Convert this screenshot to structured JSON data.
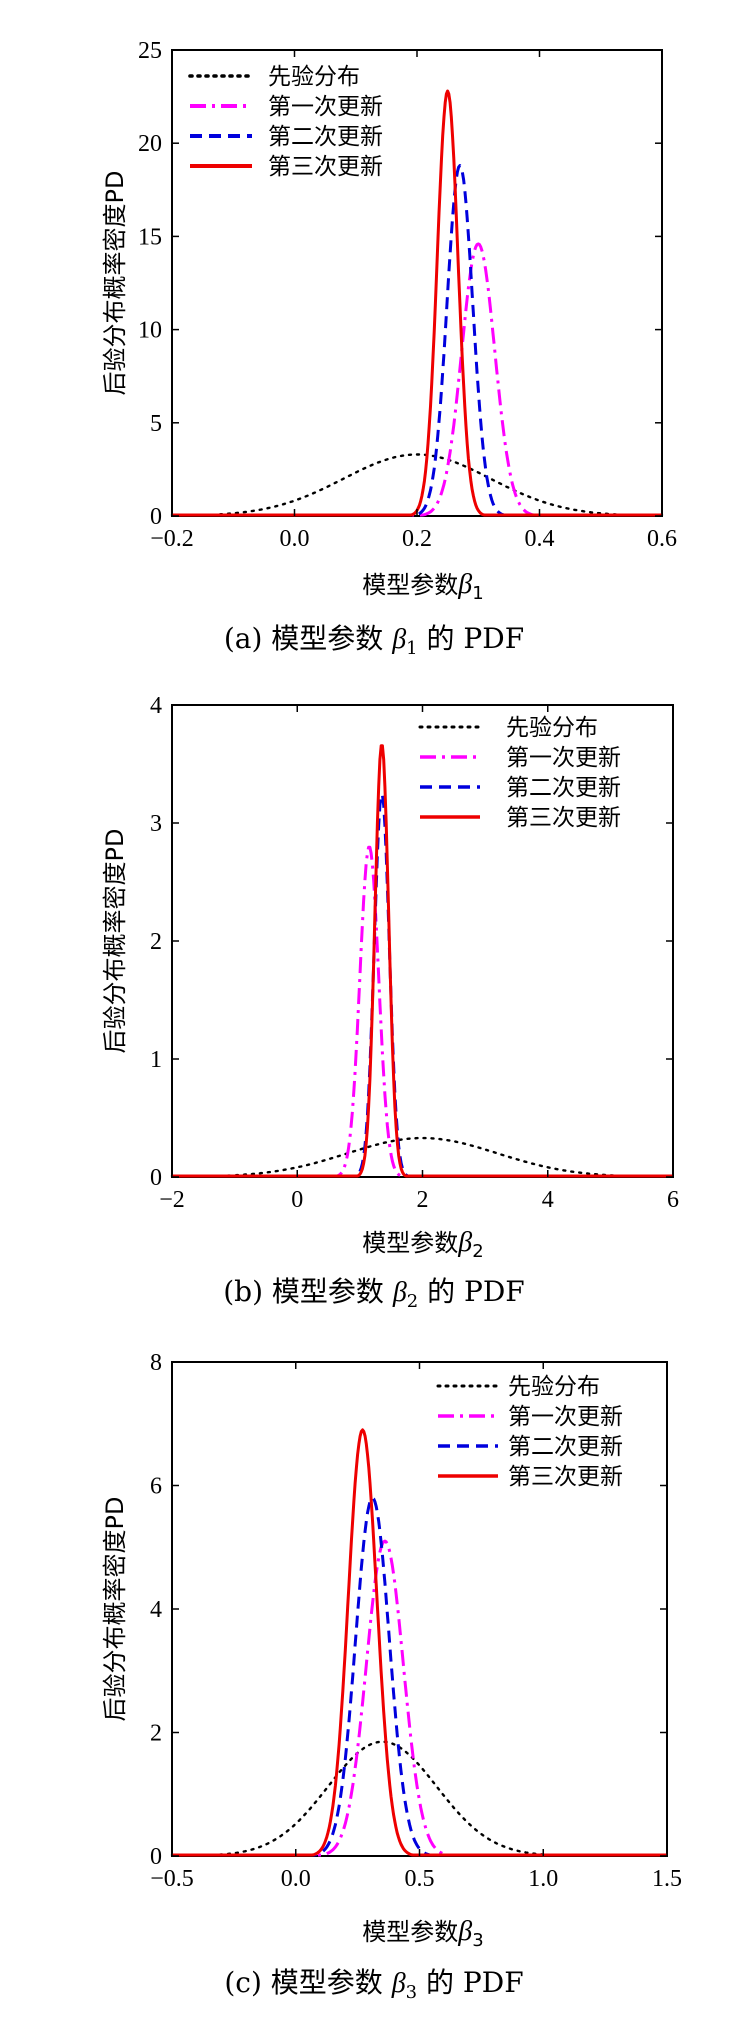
{
  "colors": {
    "prior": "#000000",
    "first": "#ff00ff",
    "second": "#0000dd",
    "third": "#ee0000"
  },
  "legend_labels": [
    "先验分布",
    "第一次更新",
    "第二次更新",
    "第三次更新"
  ],
  "chart_data": [
    {
      "type": "line",
      "panel_caption": "(a)  模型参数 β₁ 的 PDF",
      "xlabel": "模型参数β₁",
      "ylabel": "后验分布概率密度PD",
      "xlim": [
        -0.2,
        0.6
      ],
      "ylim": [
        0,
        25
      ],
      "xticks": [
        "−0.2",
        "0.0",
        "0.2",
        "0.4",
        "0.6"
      ],
      "yticks": [
        "0",
        "5",
        "10",
        "15",
        "20",
        "25"
      ],
      "legend_position": "top-left",
      "series": [
        {
          "name": "先验分布",
          "style": "dotted",
          "mean": 0.2,
          "sd": 0.12,
          "peak": 3.3
        },
        {
          "name": "第一次更新",
          "style": "dashdot",
          "mean": 0.3,
          "sd": 0.027,
          "peak": 14.6
        },
        {
          "name": "第二次更新",
          "style": "dashed",
          "mean": 0.27,
          "sd": 0.021,
          "peak": 18.8
        },
        {
          "name": "第三次更新",
          "style": "solid",
          "mean": 0.25,
          "sd": 0.017,
          "peak": 22.8
        }
      ]
    },
    {
      "type": "line",
      "panel_caption": "(b)  模型参数 β₂ 的 PDF",
      "xlabel": "模型参数β₂",
      "ylabel": "后验分布概率密度PD",
      "xlim": [
        -2,
        6
      ],
      "ylim": [
        0,
        4
      ],
      "xticks": [
        "−2",
        "0",
        "2",
        "4",
        "6"
      ],
      "yticks": [
        "0",
        "1",
        "2",
        "3",
        "4"
      ],
      "legend_position": "top-right",
      "series": [
        {
          "name": "先验分布",
          "style": "dotted",
          "mean": 2.0,
          "sd": 1.2,
          "peak": 0.33
        },
        {
          "name": "第一次更新",
          "style": "dashdot",
          "mean": 1.15,
          "sd": 0.15,
          "peak": 2.8
        },
        {
          "name": "第二次更新",
          "style": "dashed",
          "mean": 1.35,
          "sd": 0.12,
          "peak": 3.25
        },
        {
          "name": "第三次更新",
          "style": "solid",
          "mean": 1.35,
          "sd": 0.11,
          "peak": 3.67
        }
      ]
    },
    {
      "type": "line",
      "panel_caption": "(c)  模型参数 β₃ 的 PDF",
      "xlabel": "模型参数β₃",
      "ylabel": "后验分布概率密度PD",
      "xlim": [
        -0.5,
        1.5
      ],
      "ylim": [
        0,
        8
      ],
      "xticks": [
        "−0.5",
        "0.0",
        "0.5",
        "1.0",
        "1.5"
      ],
      "yticks": [
        "0",
        "2",
        "4",
        "6",
        "8"
      ],
      "legend_position": "top-right",
      "series": [
        {
          "name": "先验分布",
          "style": "dotted",
          "mean": 0.35,
          "sd": 0.22,
          "peak": 1.85
        },
        {
          "name": "第一次更新",
          "style": "dashdot",
          "mean": 0.36,
          "sd": 0.075,
          "peak": 5.1
        },
        {
          "name": "第二次更新",
          "style": "dashed",
          "mean": 0.31,
          "sd": 0.068,
          "peak": 5.8
        },
        {
          "name": "第三次更新",
          "style": "solid",
          "mean": 0.27,
          "sd": 0.058,
          "peak": 6.9
        }
      ]
    }
  ]
}
